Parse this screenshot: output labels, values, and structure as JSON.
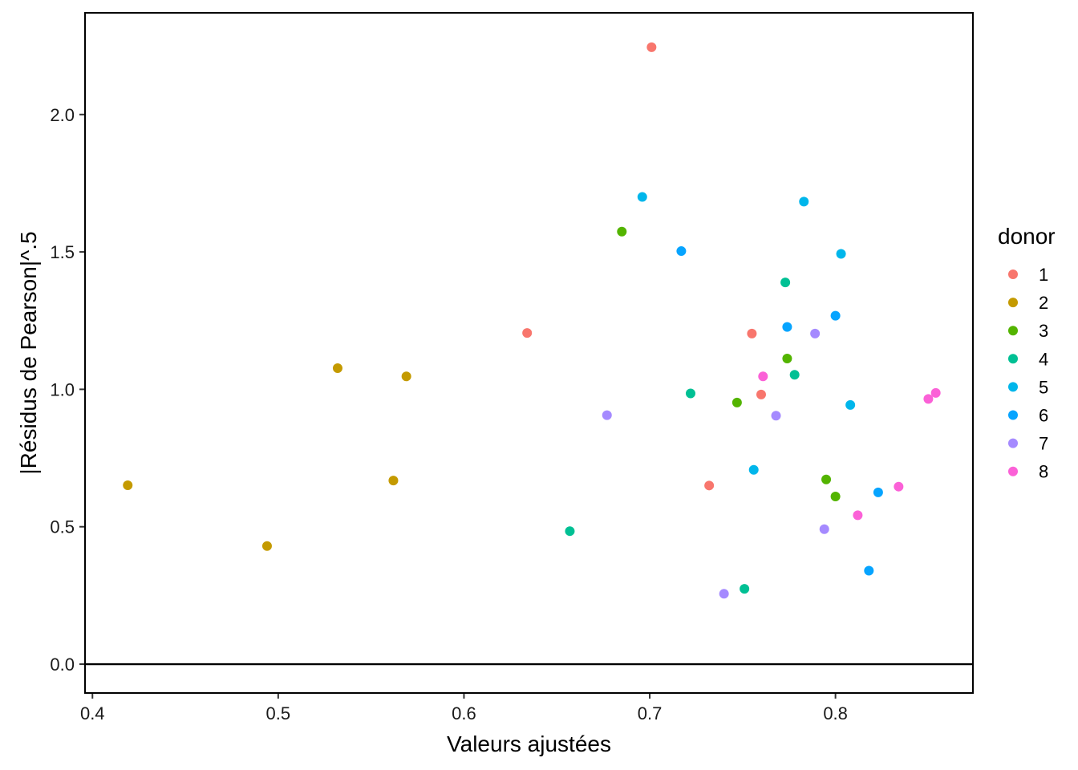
{
  "chart_data": {
    "type": "scatter",
    "title": "",
    "xlabel": "Valeurs ajustées",
    "ylabel": "|Résidus de Pearson|^.5",
    "xlim": [
      0.396,
      0.874
    ],
    "ylim": [
      -0.105,
      2.37
    ],
    "x_ticks": [
      0.4,
      0.5,
      0.6,
      0.7,
      0.8
    ],
    "x_tick_labels": [
      "0.4",
      "0.5",
      "0.6",
      "0.7",
      "0.8"
    ],
    "y_ticks": [
      0.0,
      0.5,
      1.0,
      1.5,
      2.0
    ],
    "y_tick_labels": [
      "0.0",
      "0.5",
      "1.0",
      "1.5",
      "2.0"
    ],
    "hline": 0.0,
    "grid": false,
    "legend": {
      "title": "donor",
      "position": "right"
    },
    "series": [
      {
        "name": "1",
        "color": "#F8766D",
        "points": [
          [
            0.701,
            2.245
          ],
          [
            0.634,
            1.205
          ],
          [
            0.755,
            1.203
          ],
          [
            0.76,
            0.981
          ],
          [
            0.732,
            0.65
          ]
        ]
      },
      {
        "name": "2",
        "color": "#C49A00",
        "points": [
          [
            0.532,
            1.077
          ],
          [
            0.569,
            1.047
          ],
          [
            0.419,
            0.651
          ],
          [
            0.562,
            0.668
          ],
          [
            0.494,
            0.43
          ]
        ]
      },
      {
        "name": "3",
        "color": "#53B400",
        "points": [
          [
            0.685,
            1.574
          ],
          [
            0.774,
            1.112
          ],
          [
            0.747,
            0.952
          ],
          [
            0.795,
            0.672
          ],
          [
            0.8,
            0.61
          ]
        ]
      },
      {
        "name": "4",
        "color": "#00C094",
        "points": [
          [
            0.773,
            1.389
          ],
          [
            0.778,
            1.053
          ],
          [
            0.722,
            0.985
          ],
          [
            0.657,
            0.484
          ],
          [
            0.751,
            0.274
          ]
        ]
      },
      {
        "name": "5",
        "color": "#00B6EB",
        "points": [
          [
            0.696,
            1.7
          ],
          [
            0.783,
            1.683
          ],
          [
            0.803,
            1.493
          ],
          [
            0.808,
            0.943
          ],
          [
            0.756,
            0.707
          ]
        ]
      },
      {
        "name": "6",
        "color": "#06A4FF",
        "points": [
          [
            0.717,
            1.503
          ],
          [
            0.8,
            1.268
          ],
          [
            0.774,
            1.227
          ],
          [
            0.823,
            0.625
          ],
          [
            0.818,
            0.34
          ]
        ]
      },
      {
        "name": "7",
        "color": "#A58AFF",
        "points": [
          [
            0.789,
            1.203
          ],
          [
            0.677,
            0.906
          ],
          [
            0.768,
            0.904
          ],
          [
            0.794,
            0.491
          ],
          [
            0.74,
            0.256
          ]
        ]
      },
      {
        "name": "8",
        "color": "#FB61D7",
        "points": [
          [
            0.761,
            1.047
          ],
          [
            0.854,
            0.987
          ],
          [
            0.85,
            0.965
          ],
          [
            0.834,
            0.646
          ],
          [
            0.812,
            0.542
          ]
        ]
      }
    ]
  }
}
